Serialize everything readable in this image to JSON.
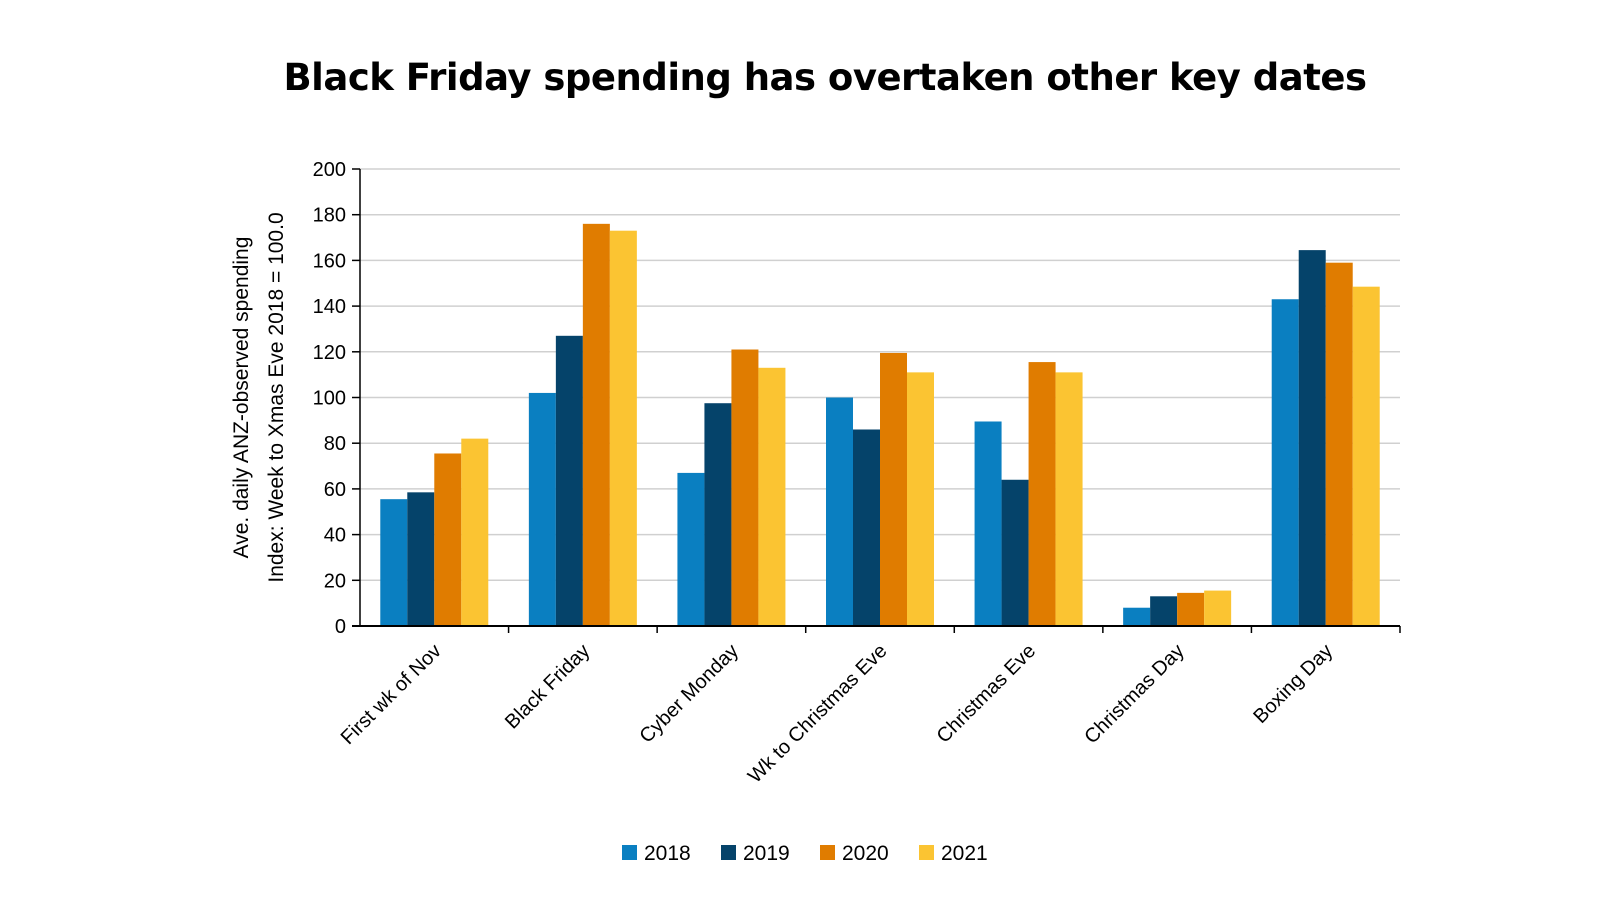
{
  "chart_data": {
    "type": "bar",
    "title": "Black Friday spending has overtaken other key dates",
    "ylabel_lines": [
      "Ave. daily ANZ-observed spending",
      "Index: Week to Xmas Eve 2018 = 100.0"
    ],
    "xlabel": "",
    "ylim": [
      0,
      200
    ],
    "yticks": [
      0,
      20,
      40,
      60,
      80,
      100,
      120,
      140,
      160,
      180,
      200
    ],
    "grid": true,
    "legend_position": "bottom",
    "categories": [
      "First wk of Nov",
      "Black Friday",
      "Cyber Monday",
      "Wk to Christmas Eve",
      "Christmas Eve",
      "Christmas Day",
      "Boxing Day"
    ],
    "series": [
      {
        "name": "2018",
        "color": "#0a7fc1",
        "values": [
          55.5,
          102,
          67,
          100,
          89.5,
          8,
          143
        ]
      },
      {
        "name": "2019",
        "color": "#05436a",
        "values": [
          58.5,
          127,
          97.5,
          86,
          64,
          13,
          164.5
        ]
      },
      {
        "name": "2020",
        "color": "#e07c00",
        "values": [
          75.5,
          176,
          121,
          119.5,
          115.5,
          14.5,
          159
        ]
      },
      {
        "name": "2021",
        "color": "#fbc432",
        "values": [
          82,
          173,
          113,
          111,
          111,
          15.5,
          148.5
        ]
      }
    ]
  }
}
